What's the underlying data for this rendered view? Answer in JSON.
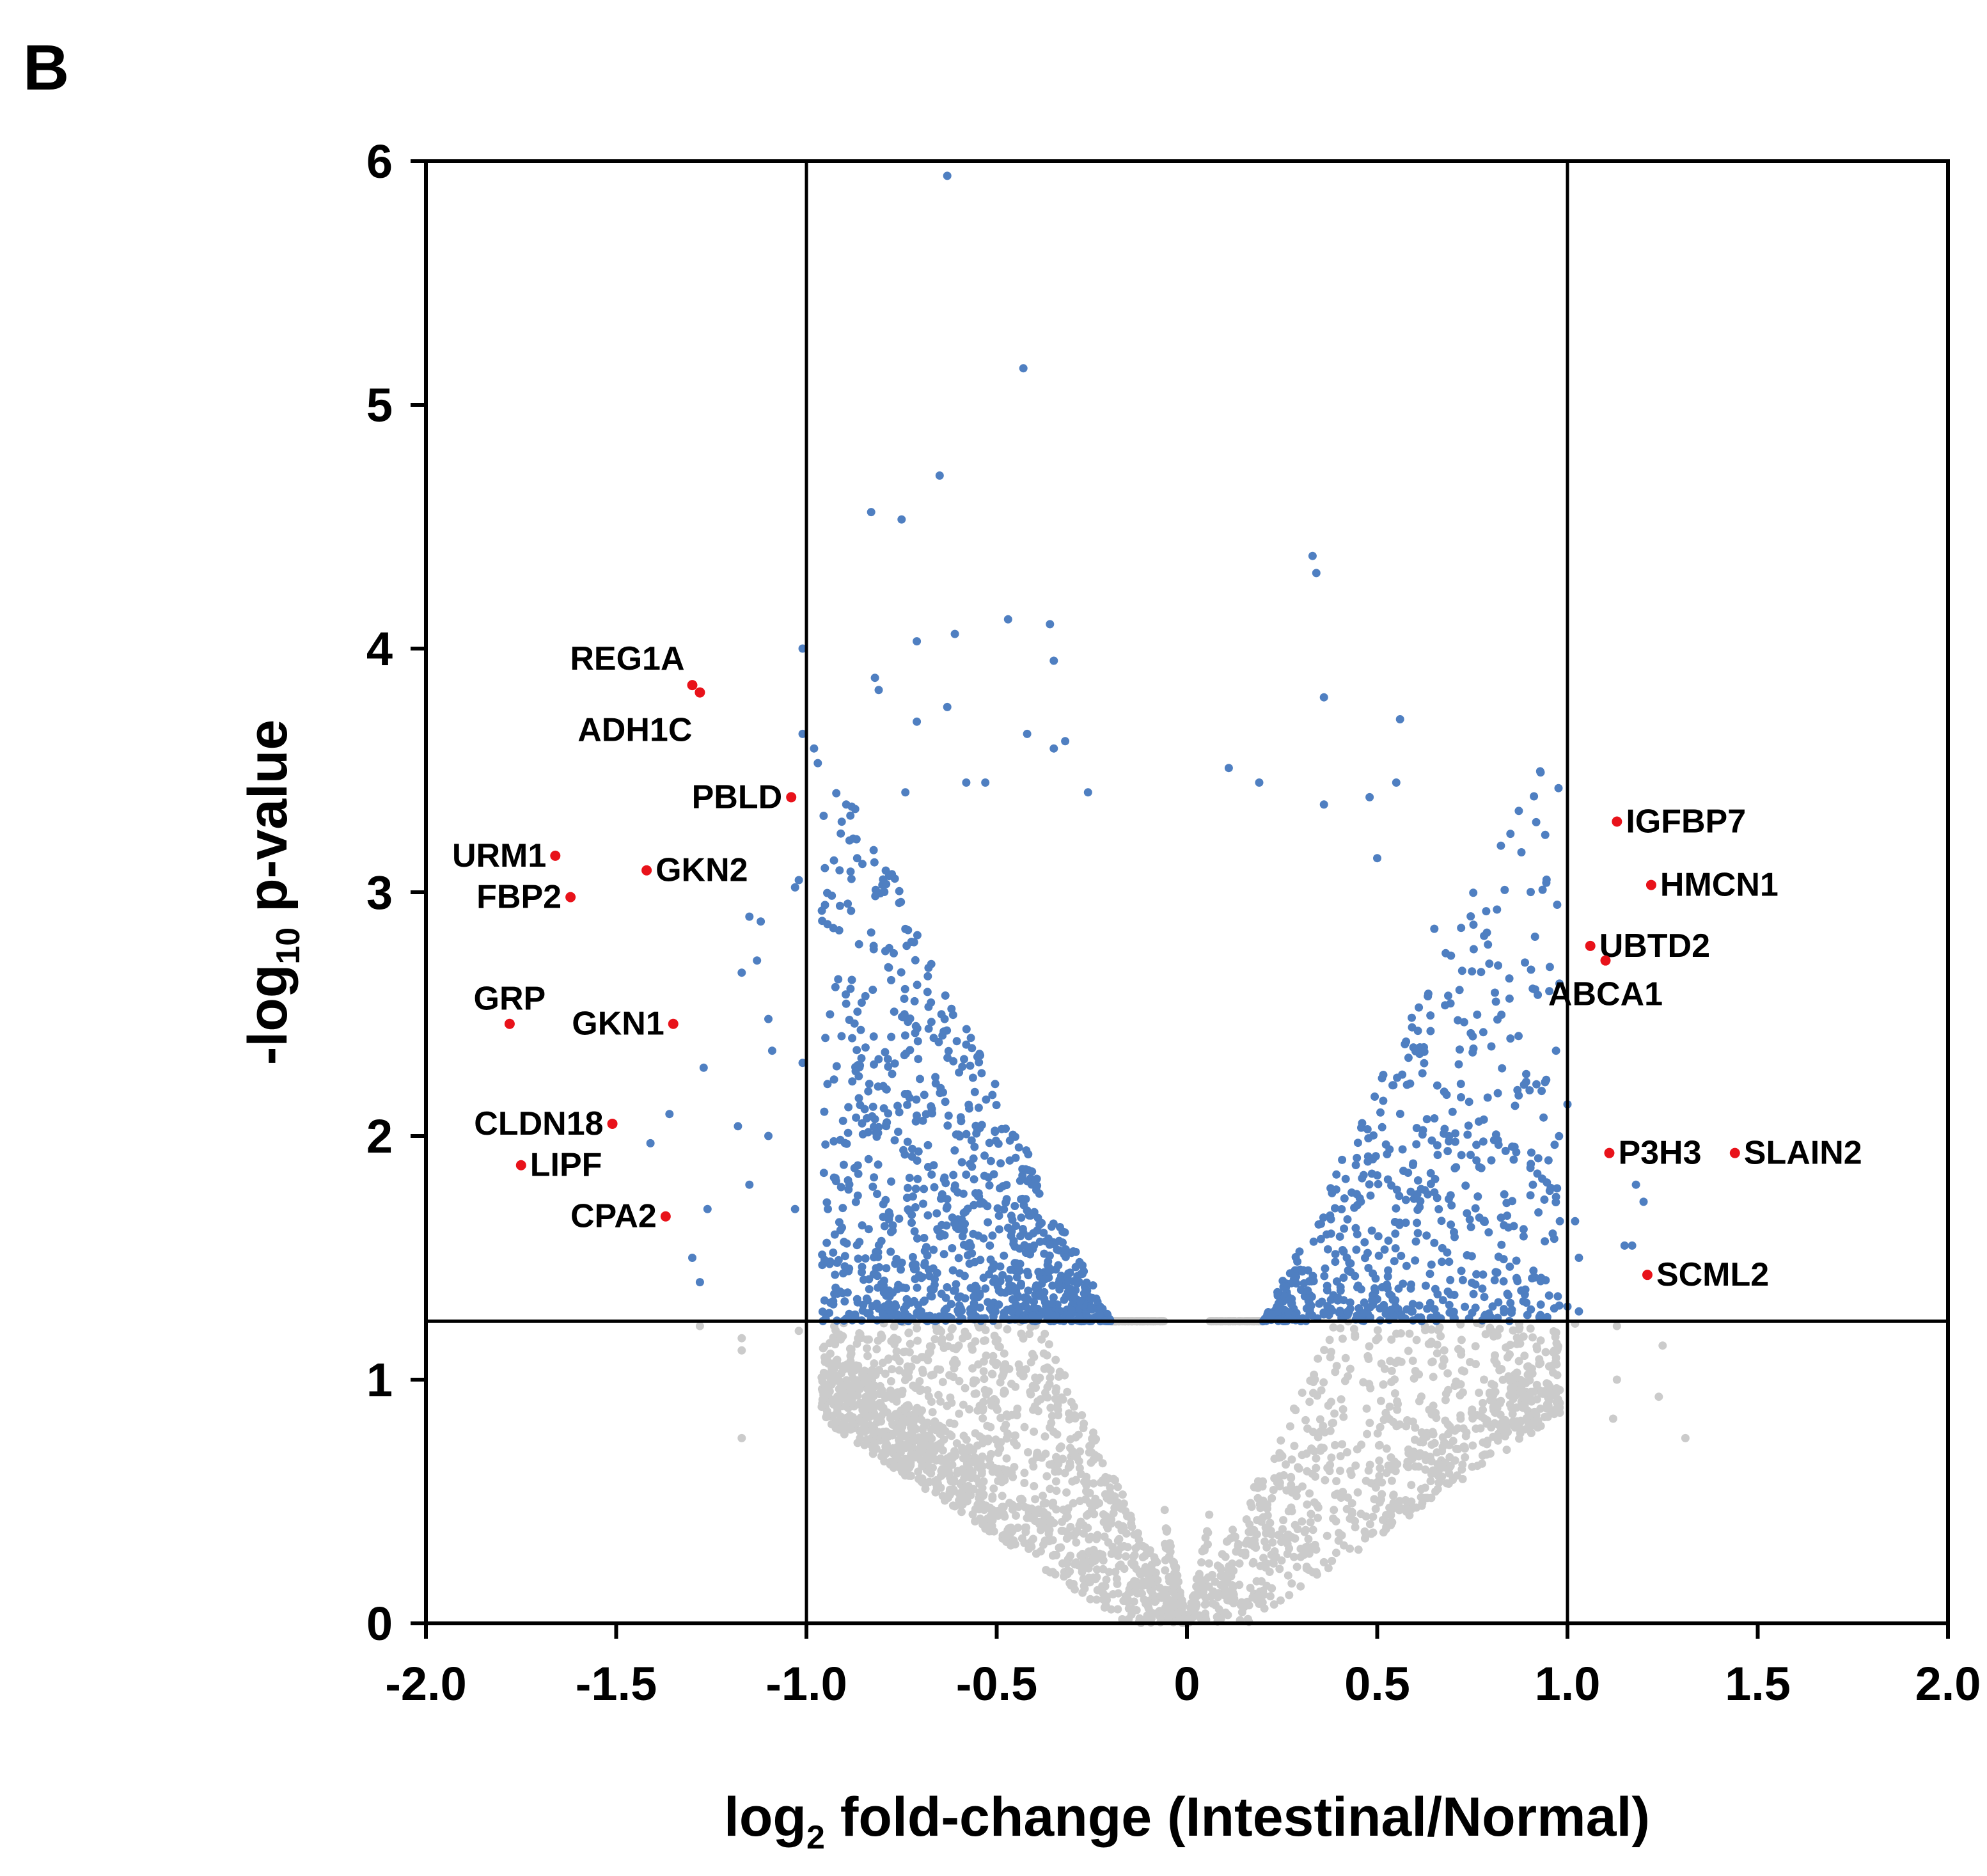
{
  "panel_label": "B",
  "colors": {
    "significant": "#4f7fc1",
    "nonsignificant": "#cbcbcb",
    "highlight": "#e8121a",
    "axis": "#000000"
  },
  "chart_data": {
    "type": "scatter",
    "subtype": "volcano",
    "xlabel": "log2 fold-change (Intestinal/Normal)",
    "xlabel_parts": {
      "pre": "log",
      "sub": "2",
      "post": " fold-change (Intestinal/Normal)"
    },
    "ylabel": "-log10 p-value",
    "ylabel_parts": {
      "pre": "-log",
      "sub": "10",
      "post": " p-value"
    },
    "xlim": [
      -2.0,
      2.0
    ],
    "ylim": [
      0,
      6
    ],
    "x_ticks": [
      -2.0,
      -1.5,
      -1.0,
      -0.5,
      0,
      0.5,
      1.0,
      1.5,
      2.0
    ],
    "x_tick_labels": [
      "-2.0",
      "-1.5",
      "-1.0",
      "-0.5",
      "0",
      "0.5",
      "1.0",
      "1.5",
      "2.0"
    ],
    "y_ticks": [
      0,
      1,
      2,
      3,
      4,
      5,
      6
    ],
    "y_tick_labels": [
      "0",
      "1",
      "2",
      "3",
      "4",
      "5",
      "6"
    ],
    "threshold_lines": {
      "x": [
        -1.0,
        1.0
      ],
      "y": 1.24
    },
    "background_series_note": "Several thousand genes; blue = p < threshold, grey = not significant (point cloud generated from the outlier list plus a V-shaped bulk)",
    "outliers_significant": [
      [
        -0.63,
        5.94
      ],
      [
        -0.43,
        5.15
      ],
      [
        -0.65,
        4.71
      ],
      [
        -0.83,
        4.56
      ],
      [
        -0.75,
        4.53
      ],
      [
        -0.36,
        4.1
      ],
      [
        -0.47,
        4.12
      ],
      [
        -0.71,
        4.03
      ],
      [
        -0.61,
        4.06
      ],
      [
        -0.35,
        3.95
      ],
      [
        -1.01,
        4.0
      ],
      [
        -0.82,
        3.88
      ],
      [
        -0.81,
        3.83
      ],
      [
        -0.63,
        3.76
      ],
      [
        -0.71,
        3.7
      ],
      [
        -1.01,
        3.65
      ],
      [
        -0.98,
        3.59
      ],
      [
        -0.42,
        3.65
      ],
      [
        -0.32,
        3.62
      ],
      [
        -0.35,
        3.59
      ],
      [
        -0.97,
        3.53
      ],
      [
        -0.58,
        3.45
      ],
      [
        -0.53,
        3.45
      ],
      [
        -0.26,
        3.41
      ],
      [
        -0.74,
        3.41
      ],
      [
        0.33,
        4.38
      ],
      [
        0.34,
        4.31
      ],
      [
        0.36,
        3.8
      ],
      [
        0.56,
        3.71
      ],
      [
        0.11,
        3.51
      ],
      [
        0.19,
        3.45
      ],
      [
        0.55,
        3.45
      ],
      [
        0.48,
        3.39
      ],
      [
        0.36,
        3.36
      ],
      [
        0.5,
        3.14
      ],
      [
        0.85,
        3.24
      ],
      [
        -1.02,
        3.05
      ],
      [
        -1.03,
        3.02
      ],
      [
        -1.15,
        2.9
      ],
      [
        -1.12,
        2.88
      ],
      [
        -1.13,
        2.72
      ],
      [
        -1.17,
        2.67
      ],
      [
        -1.1,
        2.48
      ],
      [
        -1.09,
        2.35
      ],
      [
        -1.27,
        2.28
      ],
      [
        -1.36,
        2.09
      ],
      [
        -1.41,
        1.97
      ],
      [
        -1.18,
        2.04
      ],
      [
        -1.1,
        2.0
      ],
      [
        -1.15,
        1.8
      ],
      [
        -1.26,
        1.7
      ],
      [
        -1.3,
        1.5
      ],
      [
        -1.28,
        1.4
      ],
      [
        -1.28,
        1.22
      ],
      [
        -1.17,
        1.17
      ],
      [
        -1.17,
        1.12
      ],
      [
        -1.17,
        0.76
      ],
      [
        -1.02,
        1.2
      ],
      [
        -1.03,
        1.7
      ],
      [
        -1.01,
        2.3
      ],
      [
        0.97,
        2.35
      ],
      [
        1.0,
        2.13
      ],
      [
        0.95,
        1.9
      ],
      [
        0.97,
        1.75
      ],
      [
        1.0,
        1.3
      ],
      [
        0.98,
        1.65
      ],
      [
        1.03,
        1.28
      ],
      [
        1.02,
        1.23
      ],
      [
        1.03,
        1.5
      ],
      [
        1.02,
        1.65
      ],
      [
        1.18,
        1.8
      ],
      [
        1.2,
        1.73
      ],
      [
        1.17,
        1.55
      ],
      [
        1.15,
        1.55
      ],
      [
        1.13,
        1.22
      ],
      [
        1.13,
        1.0
      ],
      [
        1.12,
        0.84
      ],
      [
        1.25,
        1.14
      ],
      [
        1.24,
        0.93
      ],
      [
        1.31,
        0.76
      ],
      [
        0.85,
        2.4
      ],
      [
        0.8,
        1.9
      ],
      [
        0.78,
        1.65
      ],
      [
        0.65,
        2.85
      ],
      [
        0.68,
        2.75
      ]
    ],
    "highlighted_genes": [
      {
        "gene": "REG1A",
        "x": -1.3,
        "y": 3.85,
        "label_pos": "above-left"
      },
      {
        "gene": "ADH1C",
        "x": -1.28,
        "y": 3.82,
        "label_pos": "below-left"
      },
      {
        "gene": "PBLD",
        "x": -1.04,
        "y": 3.39,
        "label_pos": "left"
      },
      {
        "gene": "URM1",
        "x": -1.66,
        "y": 3.15,
        "label_pos": "left"
      },
      {
        "gene": "GKN2",
        "x": -1.42,
        "y": 3.09,
        "label_pos": "right"
      },
      {
        "gene": "FBP2",
        "x": -1.62,
        "y": 2.98,
        "label_pos": "left"
      },
      {
        "gene": "GRP",
        "x": -1.78,
        "y": 2.46,
        "label_pos": "above"
      },
      {
        "gene": "GKN1",
        "x": -1.35,
        "y": 2.46,
        "label_pos": "left"
      },
      {
        "gene": "CLDN18",
        "x": -1.51,
        "y": 2.05,
        "label_pos": "left"
      },
      {
        "gene": "LIPF",
        "x": -1.75,
        "y": 1.88,
        "label_pos": "right"
      },
      {
        "gene": "CPA2",
        "x": -1.37,
        "y": 1.67,
        "label_pos": "left"
      },
      {
        "gene": "IGFBP7",
        "x": 1.13,
        "y": 3.29,
        "label_pos": "right"
      },
      {
        "gene": "HMCN1",
        "x": 1.22,
        "y": 3.03,
        "label_pos": "right"
      },
      {
        "gene": "UBTD2",
        "x": 1.06,
        "y": 2.78,
        "label_pos": "right"
      },
      {
        "gene": "ABCA1",
        "x": 1.1,
        "y": 2.72,
        "label_pos": "below"
      },
      {
        "gene": "P3H3",
        "x": 1.11,
        "y": 1.93,
        "label_pos": "right"
      },
      {
        "gene": "SLAIN2",
        "x": 1.44,
        "y": 1.93,
        "label_pos": "right"
      },
      {
        "gene": "SCML2",
        "x": 1.21,
        "y": 1.43,
        "label_pos": "right"
      }
    ]
  }
}
